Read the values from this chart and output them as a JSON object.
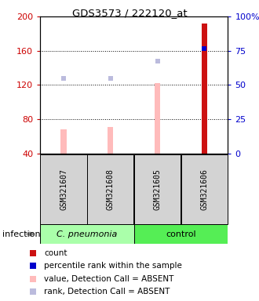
{
  "title": "GDS3573 / 222120_at",
  "samples": [
    "GSM321607",
    "GSM321608",
    "GSM321605",
    "GSM321606"
  ],
  "groups": [
    "C. pneumonia",
    "C. pneumonia",
    "control",
    "control"
  ],
  "ylim_left": [
    40,
    200
  ],
  "ylim_right": [
    0,
    100
  ],
  "yticks_left": [
    40,
    80,
    120,
    160,
    200
  ],
  "yticks_right": [
    0,
    25,
    50,
    75,
    100
  ],
  "bar_values": [
    68,
    71,
    122,
    192
  ],
  "bar_colors": [
    "#ffbbbb",
    "#ffbbbb",
    "#ffbbbb",
    "#cc1111"
  ],
  "rank_values": [
    128,
    128,
    148,
    163
  ],
  "rank_is_absent": [
    true,
    true,
    true,
    false
  ],
  "bar_width": 0.12,
  "infection_label": "infection",
  "left_label_color": "#cc0000",
  "right_label_color": "#0000cc",
  "sample_bg_color": "#d3d3d3",
  "cpn_color": "#aaffaa",
  "ctrl_color": "#55ee55",
  "grid_dotted_ticks": [
    80,
    120,
    160
  ],
  "legend": [
    {
      "color": "#cc1111",
      "label": "count"
    },
    {
      "color": "#0000cc",
      "label": "percentile rank within the sample"
    },
    {
      "color": "#ffbbbb",
      "label": "value, Detection Call = ABSENT"
    },
    {
      "color": "#bbbbdd",
      "label": "rank, Detection Call = ABSENT"
    }
  ]
}
